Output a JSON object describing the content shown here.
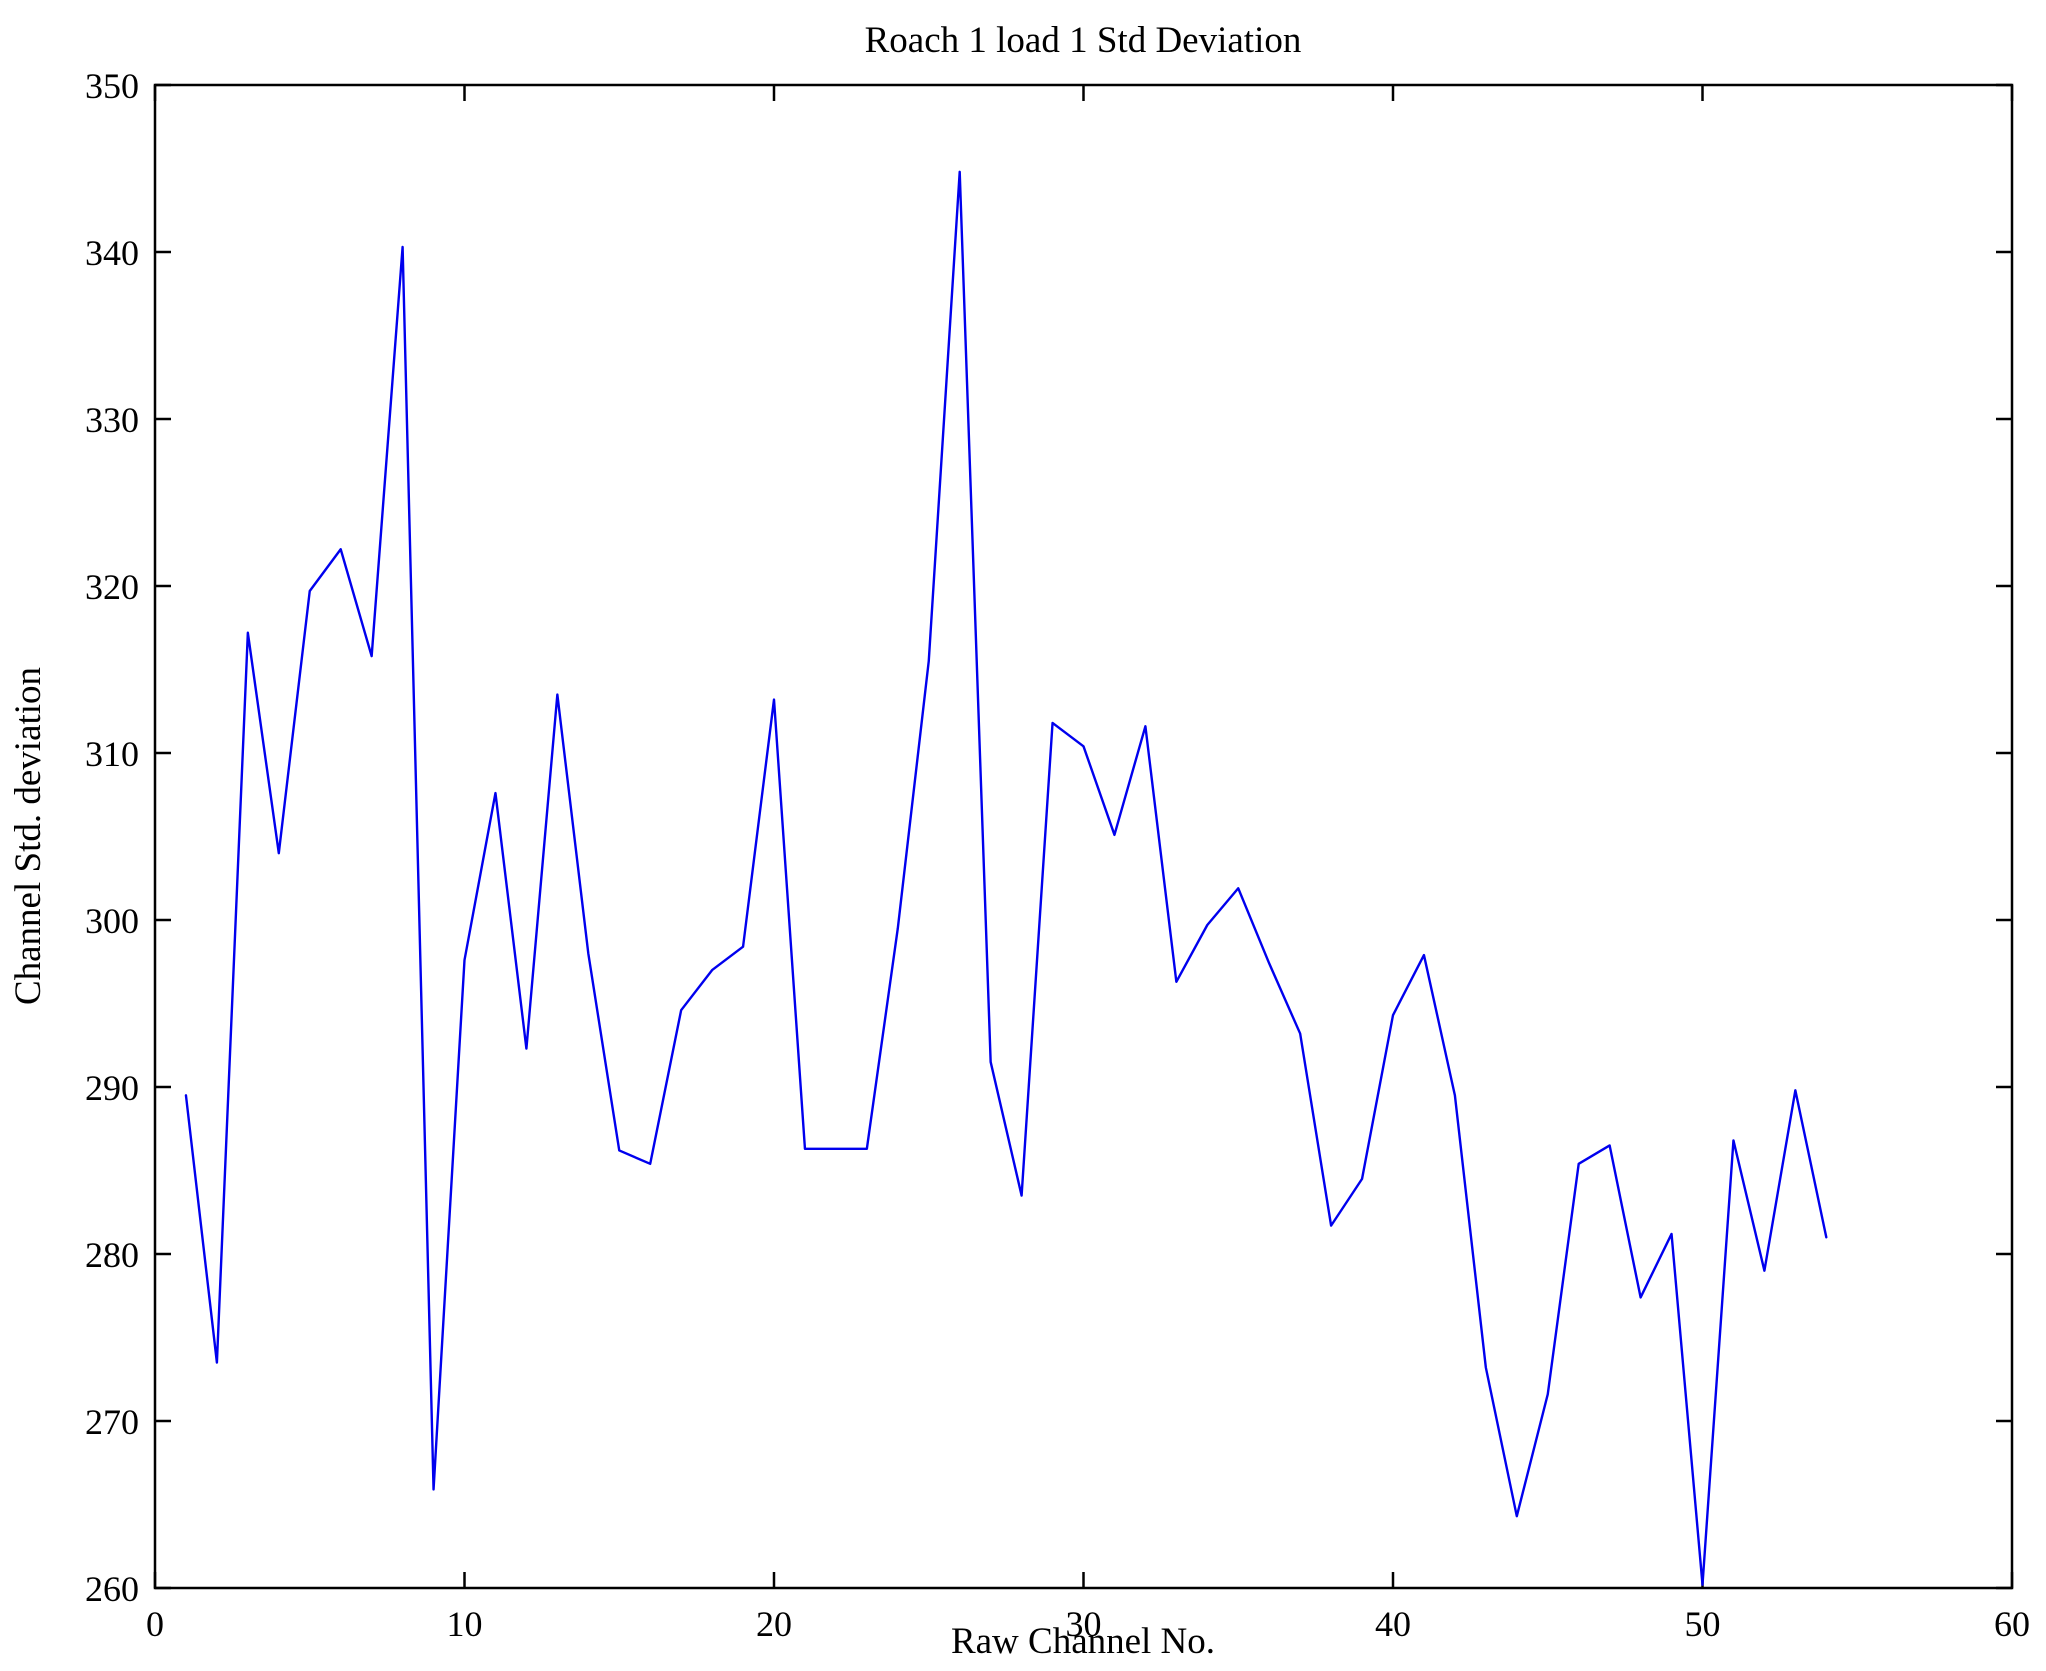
{
  "chart_data": {
    "type": "line",
    "title": "Roach 1 load 1 Std Deviation",
    "xlabel": "Raw Channel No.",
    "ylabel": "Channel Std. deviation",
    "xlim": [
      0,
      60
    ],
    "ylim": [
      260,
      350
    ],
    "xticks": [
      0,
      10,
      20,
      30,
      40,
      50,
      60
    ],
    "yticks": [
      260,
      270,
      280,
      290,
      300,
      310,
      320,
      330,
      340,
      350
    ],
    "grid": false,
    "legend": null,
    "line_color": "#0000EE",
    "axis_color": "#000000",
    "background_color": "#ffffff",
    "x": [
      1,
      2,
      3,
      4,
      5,
      6,
      7,
      8,
      9,
      10,
      11,
      12,
      13,
      14,
      15,
      16,
      17,
      18,
      19,
      20,
      21,
      22,
      23,
      24,
      25,
      26,
      27,
      28,
      29,
      30,
      31,
      32,
      33,
      34,
      35,
      36,
      37,
      38,
      39,
      40,
      41,
      42,
      43,
      44,
      45,
      46,
      47,
      48,
      49,
      50,
      51,
      52,
      53,
      54
    ],
    "y": [
      289.5,
      273.5,
      317.2,
      304.0,
      319.7,
      322.2,
      315.8,
      340.3,
      265.9,
      297.6,
      307.6,
      292.3,
      313.5,
      298.0,
      286.2,
      285.4,
      294.6,
      297.0,
      298.4,
      313.2,
      286.3,
      286.3,
      286.3,
      299.5,
      315.5,
      344.8,
      291.5,
      283.5,
      311.8,
      310.4,
      305.1,
      311.6,
      296.3,
      299.7,
      301.9,
      297.4,
      293.2,
      281.7,
      284.5,
      294.3,
      297.9,
      289.5,
      273.2,
      264.3,
      271.6,
      285.4,
      286.5,
      277.4,
      281.2,
      260.2,
      286.8,
      279.0,
      289.8,
      281.0
    ]
  }
}
